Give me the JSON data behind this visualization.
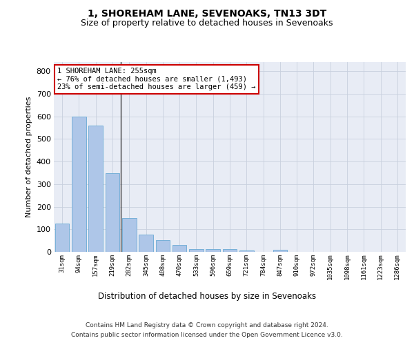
{
  "title": "1, SHOREHAM LANE, SEVENOAKS, TN13 3DT",
  "subtitle": "Size of property relative to detached houses in Sevenoaks",
  "xlabel": "Distribution of detached houses by size in Sevenoaks",
  "ylabel": "Number of detached properties",
  "categories": [
    "31sqm",
    "94sqm",
    "157sqm",
    "219sqm",
    "282sqm",
    "345sqm",
    "408sqm",
    "470sqm",
    "533sqm",
    "596sqm",
    "659sqm",
    "721sqm",
    "784sqm",
    "847sqm",
    "910sqm",
    "972sqm",
    "1035sqm",
    "1098sqm",
    "1161sqm",
    "1223sqm",
    "1286sqm"
  ],
  "values": [
    125,
    600,
    558,
    348,
    150,
    77,
    52,
    30,
    13,
    12,
    12,
    6,
    0,
    8,
    0,
    0,
    0,
    0,
    0,
    0,
    0
  ],
  "bar_color": "#aec6e8",
  "bar_edge_color": "#6aaad4",
  "vline_x": 3.5,
  "annotation_line1": "1 SHOREHAM LANE: 255sqm",
  "annotation_line2": "← 76% of detached houses are smaller (1,493)",
  "annotation_line3": "23% of semi-detached houses are larger (459) →",
  "annotation_box_color": "#ffffff",
  "annotation_box_edge_color": "#cc0000",
  "ylim_max": 840,
  "yticks": [
    0,
    100,
    200,
    300,
    400,
    500,
    600,
    700,
    800
  ],
  "grid_color": "#c8d0de",
  "bg_color": "#e8ecf5",
  "title_fontsize": 10,
  "subtitle_fontsize": 9,
  "footer_line1": "Contains HM Land Registry data © Crown copyright and database right 2024.",
  "footer_line2": "Contains public sector information licensed under the Open Government Licence v3.0."
}
